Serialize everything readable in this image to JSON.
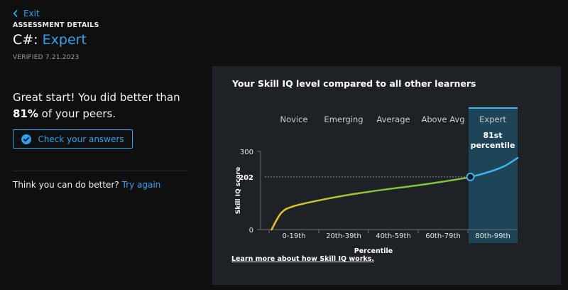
{
  "nav": {
    "exit_label": "Exit"
  },
  "header": {
    "eyebrow": "ASSESSMENT DETAILS",
    "skill": "C#: ",
    "level": "Expert",
    "verified": "VERIFIED 7.21.2023"
  },
  "result": {
    "text_before": "Great start! You did better than ",
    "percent": "81%",
    "text_after": " of your peers."
  },
  "actions": {
    "check_answers": "Check your answers",
    "retry_prompt": "Think you can do better?",
    "retry_link": "Try again"
  },
  "colors": {
    "accent": "#2aa3f0",
    "panel_bg": "#1e2126",
    "expert_band": "#1d4457",
    "curve_start": "#f3c21f",
    "curve_mid": "#7ec63a",
    "curve_end": "#3bb6ef"
  },
  "panel": {
    "title": "Your Skill IQ level compared to all other learners",
    "learn_more": "Learn more about how Skill IQ works."
  },
  "chart_data": {
    "type": "line",
    "categories": [
      "Novice",
      "Emerging",
      "Average",
      "Above Avg",
      "Expert"
    ],
    "x_ticks": [
      "0-19th",
      "20th-39th",
      "40th-59th",
      "60th-79th",
      "80th-99th"
    ],
    "xlabel": "Percentile",
    "ylabel": "Skill IQ score",
    "ylim": [
      0,
      300
    ],
    "y_ticks": [
      0,
      300
    ],
    "highlight_band": "Expert",
    "marker": {
      "x": 81,
      "y": 202,
      "label_line1": "81st",
      "label_line2": "percentile",
      "y_label": "202"
    },
    "series": [
      {
        "x": [
          1,
          5,
          10,
          20,
          30,
          40,
          50,
          60,
          70,
          81,
          90,
          95,
          100
        ],
        "y": [
          0,
          65,
          90,
          112,
          130,
          145,
          158,
          170,
          184,
          202,
          226,
          245,
          275
        ]
      }
    ]
  }
}
